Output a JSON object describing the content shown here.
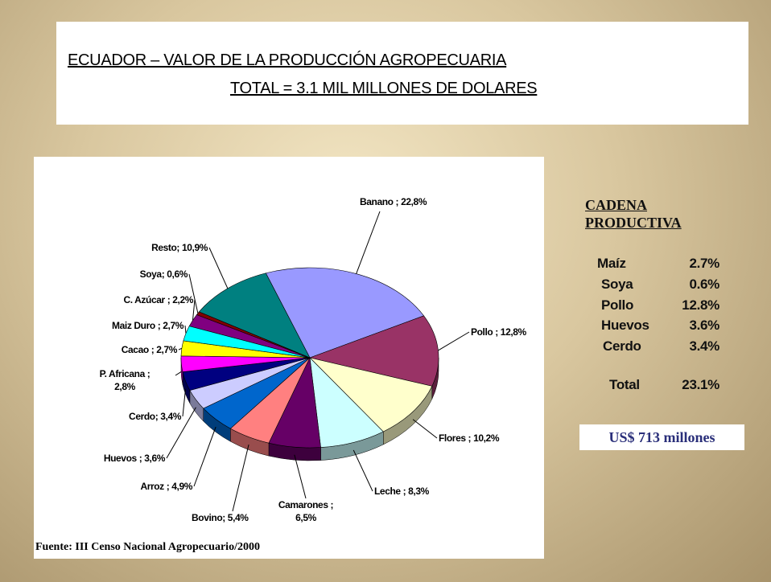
{
  "header": {
    "title": [
      "ECUADOR – VALOR DE LA PRODUCCIÓN AGROPECUARIA",
      "TOTAL = 3.1 MIL MILLONES DE DOLARES"
    ]
  },
  "chart_data": {
    "type": "pie",
    "labels": [
      "Banano ; 22,8%",
      "Pollo ; 12,8%",
      "Flores ; 10,2%",
      "Leche ; 8,3%",
      "Camarones ;\n6,5%",
      "Bovino; 5,4%",
      "Arroz ; 4,9%",
      "Huevos ; 3,6%",
      "Cerdo; 3,4%",
      "P. Africana ;\n2,8%",
      "Cacao ; 2,7%",
      "Maiz Duro ; 2,7%",
      "C. Azúcar ; 2,2%",
      "Soya; 0,6%",
      "Resto; 10,9%"
    ],
    "values": [
      22.8,
      12.8,
      10.2,
      8.3,
      6.5,
      5.4,
      4.9,
      3.6,
      3.4,
      2.8,
      2.7,
      2.7,
      2.2,
      0.6,
      10.9
    ],
    "colors": [
      "#9999ff",
      "#993366",
      "#ffffcc",
      "#ccffff",
      "#660066",
      "#ff8080",
      "#0066cc",
      "#ccccff",
      "#000080",
      "#ff00ff",
      "#ffff00",
      "#00ffff",
      "#800080",
      "#800000",
      "#008080"
    ],
    "source": "Fuente: III Censo Nacional Agropecuario/2000"
  },
  "panel": {
    "title": "CADENA\nPRODUCTIVA",
    "table": {
      "rows": [
        [
          "Maíz",
          "2.7%"
        ],
        [
          "Soya",
          "0.6%"
        ],
        [
          "Pollo",
          "12.8%"
        ],
        [
          "Huevos",
          "3.6%"
        ],
        [
          "Cerdo",
          "3.4%"
        ],
        [
          "Total",
          "23.1%"
        ]
      ]
    },
    "note": "US$ 713 millones"
  }
}
